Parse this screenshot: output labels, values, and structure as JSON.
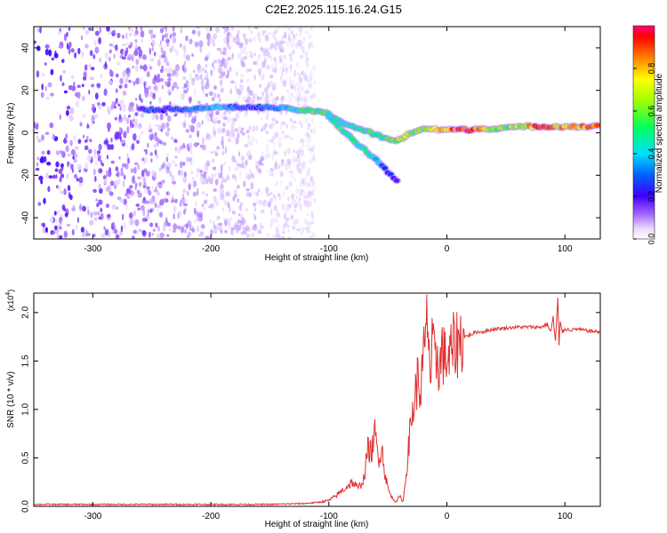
{
  "title": "C2E2.2025.115.16.24.G15",
  "chart_data": [
    {
      "type": "heatmap",
      "xlabel": "Height of straight line (km)",
      "ylabel": "Frequency (Hz)",
      "xlim": [
        -350,
        130
      ],
      "ylim": [
        -50,
        50
      ],
      "xticks": [
        -300,
        -200,
        -100,
        0,
        100
      ],
      "yticks": [
        -40,
        -20,
        0,
        20,
        40
      ],
      "colorbar": {
        "label": "Normalized spectral amplitude",
        "range": [
          0,
          1
        ],
        "ticks": [
          0.0,
          0.2,
          0.4,
          0.6,
          0.8
        ]
      },
      "noise_region": {
        "x_range": [
          -350,
          -112
        ],
        "y_range": [
          -50,
          50
        ]
      },
      "ridge": [
        {
          "x": -260,
          "y": 11.0,
          "amp": 0.2
        },
        {
          "x": -250,
          "y": 11.0,
          "amp": 0.3
        },
        {
          "x": -240,
          "y": 11.0,
          "amp": 0.2
        },
        {
          "x": -210,
          "y": 11.5,
          "amp": 0.35
        },
        {
          "x": -200,
          "y": 12.0,
          "amp": 0.4
        },
        {
          "x": -190,
          "y": 12.0,
          "amp": 0.35
        },
        {
          "x": -170,
          "y": 12.0,
          "amp": 0.25
        },
        {
          "x": -150,
          "y": 12.0,
          "amp": 0.3
        },
        {
          "x": -140,
          "y": 11.5,
          "amp": 0.35
        },
        {
          "x": -130,
          "y": 11.0,
          "amp": 0.4
        },
        {
          "x": -120,
          "y": 10.5,
          "amp": 0.55
        },
        {
          "x": -110,
          "y": 10.0,
          "amp": 0.55
        },
        {
          "x": -100,
          "y": 9.0,
          "amp": 0.5
        },
        {
          "x": -95,
          "y": 7.0,
          "amp": 0.45
        },
        {
          "x": -85,
          "y": 4.0,
          "amp": 0.45
        },
        {
          "x": -75,
          "y": 2.0,
          "amp": 0.45
        },
        {
          "x": -65,
          "y": 0.0,
          "amp": 0.5
        },
        {
          "x": -55,
          "y": -2.0,
          "amp": 0.5
        },
        {
          "x": -45,
          "y": -4.0,
          "amp": 0.55
        },
        {
          "x": -40,
          "y": -3.0,
          "amp": 0.7
        },
        {
          "x": -30,
          "y": 0.0,
          "amp": 0.6
        },
        {
          "x": -20,
          "y": 2.0,
          "amp": 0.7
        },
        {
          "x": -10,
          "y": 1.5,
          "amp": 0.75
        },
        {
          "x": 0,
          "y": 1.5,
          "amp": 0.8
        },
        {
          "x": 10,
          "y": 1.5,
          "amp": 0.95
        },
        {
          "x": 20,
          "y": 1.5,
          "amp": 0.9
        },
        {
          "x": 30,
          "y": 2.0,
          "amp": 0.75
        },
        {
          "x": 40,
          "y": 2.0,
          "amp": 0.6
        },
        {
          "x": 50,
          "y": 2.5,
          "amp": 0.6
        },
        {
          "x": 60,
          "y": 2.5,
          "amp": 0.65
        },
        {
          "x": 70,
          "y": 3.0,
          "amp": 0.75
        },
        {
          "x": 80,
          "y": 3.0,
          "amp": 0.9
        },
        {
          "x": 90,
          "y": 3.0,
          "amp": 0.8
        },
        {
          "x": 100,
          "y": 3.0,
          "amp": 0.75
        },
        {
          "x": 110,
          "y": 3.0,
          "amp": 0.8
        },
        {
          "x": 120,
          "y": 3.0,
          "amp": 0.85
        },
        {
          "x": 130,
          "y": 3.0,
          "amp": 0.8
        }
      ],
      "branch": [
        {
          "x": -100,
          "y": 8.0,
          "amp": 0.4
        },
        {
          "x": -90,
          "y": 2.0,
          "amp": 0.5
        },
        {
          "x": -80,
          "y": -3.0,
          "amp": 0.45
        },
        {
          "x": -70,
          "y": -8.0,
          "amp": 0.45
        },
        {
          "x": -60,
          "y": -13.0,
          "amp": 0.4
        },
        {
          "x": -55,
          "y": -15.0,
          "amp": 0.3
        },
        {
          "x": -50,
          "y": -19.0,
          "amp": 0.25
        },
        {
          "x": -40,
          "y": -23.0,
          "amp": 0.15
        }
      ]
    },
    {
      "type": "line",
      "xlabel": "Height of straight line (km)",
      "ylabel": "SNR (10 * v/v)",
      "y_multiplier": "(x10",
      "y_multiplier_exp": "4",
      "y_multiplier_close": ")",
      "xlim": [
        -350,
        130
      ],
      "ylim": [
        0,
        2.2
      ],
      "xticks": [
        -300,
        -200,
        -100,
        0,
        100
      ],
      "yticks": [
        0.0,
        0.5,
        1.0,
        1.5,
        2.0
      ],
      "series": [
        {
          "color": "#e03030",
          "x": [
            -350,
            -300,
            -250,
            -200,
            -150,
            -120,
            -110,
            -100,
            -95,
            -90,
            -85,
            -80,
            -75,
            -70,
            -67,
            -64,
            -61,
            -58,
            -55,
            -52,
            -49,
            -46,
            -43,
            -40,
            -37,
            -34,
            -31,
            -28,
            -25,
            -22,
            -20,
            -18,
            -16,
            -14,
            -12,
            -10,
            -8,
            -6,
            -4,
            -2,
            0,
            2,
            4,
            6,
            8,
            10,
            15,
            20,
            25,
            30,
            40,
            50,
            60,
            70,
            80,
            85,
            88,
            90,
            92,
            94,
            95,
            96,
            98,
            100,
            105,
            110,
            120,
            130
          ],
          "y": [
            0.02,
            0.02,
            0.02,
            0.02,
            0.02,
            0.03,
            0.04,
            0.06,
            0.1,
            0.15,
            0.2,
            0.25,
            0.18,
            0.3,
            0.6,
            0.55,
            0.75,
            0.5,
            0.6,
            0.3,
            0.15,
            0.08,
            0.05,
            0.1,
            0.05,
            0.4,
            0.8,
            1.05,
            1.3,
            1.2,
            1.5,
            1.7,
            2.0,
            1.3,
            1.7,
            1.4,
            1.6,
            1.4,
            1.65,
            1.5,
            1.55,
            1.5,
            1.6,
            1.65,
            1.68,
            1.7,
            1.75,
            1.77,
            1.8,
            1.8,
            1.83,
            1.84,
            1.85,
            1.85,
            1.85,
            1.88,
            1.8,
            1.95,
            1.7,
            2.15,
            1.65,
            1.9,
            1.8,
            1.83,
            1.82,
            1.83,
            1.81,
            1.8
          ]
        }
      ]
    }
  ]
}
